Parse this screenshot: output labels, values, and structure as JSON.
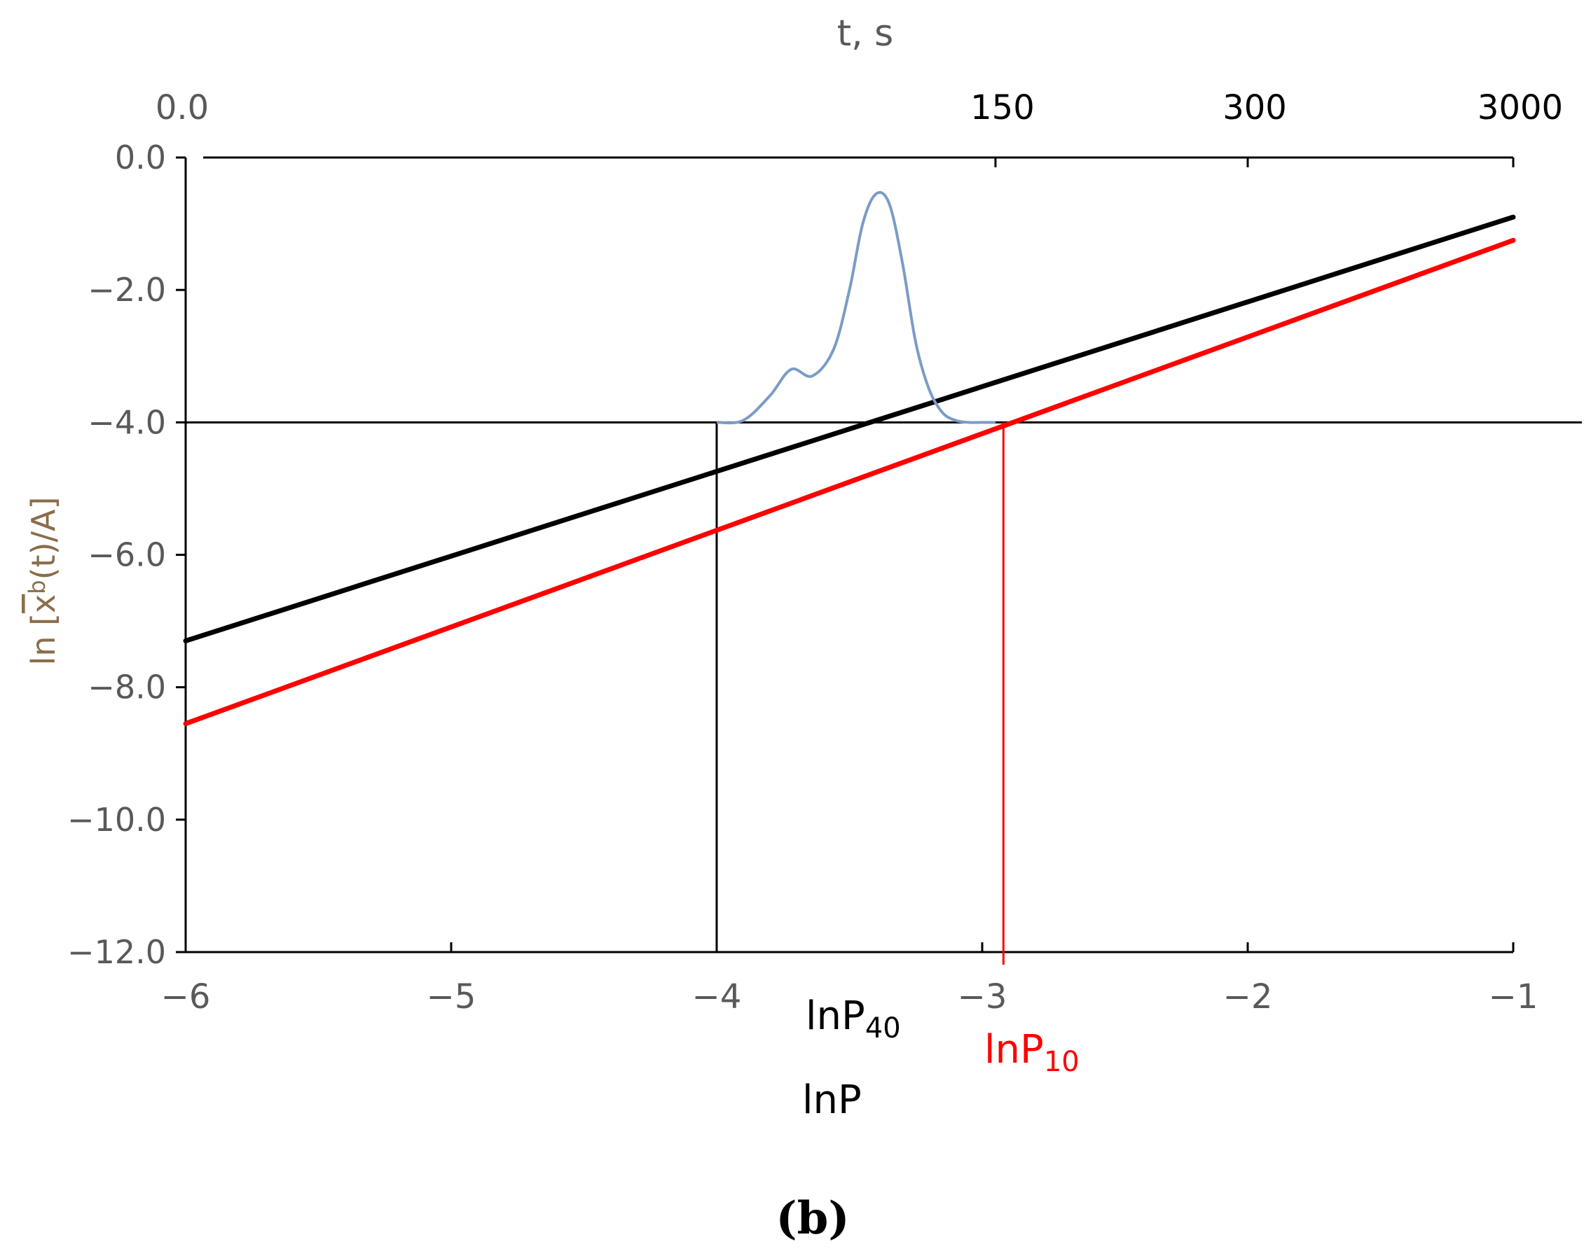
{
  "chart_data": {
    "type": "line",
    "panel_label": "(b)",
    "bottom_axis": {
      "label": "lnP",
      "xlim": [
        -6,
        -1
      ],
      "ticks": [
        -6,
        -5,
        -4,
        -3,
        -2,
        -1
      ],
      "tick_labels": [
        "−6",
        "−5",
        "−4",
        "−3",
        "−2",
        "−1"
      ]
    },
    "top_axis": {
      "label": "t, s",
      "tick_labels": [
        "0.0",
        "150",
        "300",
        "3000"
      ],
      "tick_positions_lnP": [
        -6,
        -2.95,
        -2.0,
        -1.0
      ]
    },
    "left_axis": {
      "label_parts": {
        "prefix": "ln [",
        "x": "x",
        "sup": "b",
        "suffix": "(t)/A]"
      },
      "ylim": [
        -12,
        0
      ],
      "ticks": [
        0,
        -2,
        -4,
        -6,
        -8,
        -10,
        -12
      ],
      "tick_labels": [
        "0.0",
        "−2.0",
        "−4.0",
        "−6.0",
        "−8.0",
        "−10.0",
        "−12.0"
      ]
    },
    "series": [
      {
        "key": "black_line",
        "color": "#000000",
        "x": [
          -6,
          -1
        ],
        "y": [
          -7.3,
          -0.9
        ]
      },
      {
        "key": "red_line",
        "color": "#ff0000",
        "x": [
          -6,
          -1
        ],
        "y": [
          -8.55,
          -1.25
        ]
      },
      {
        "key": "peak_curve",
        "color": "#7a9cc6",
        "x": [
          -4.0,
          -3.9,
          -3.8,
          -3.72,
          -3.64,
          -3.56,
          -3.5,
          -3.45,
          -3.4,
          -3.35,
          -3.3,
          -3.25,
          -3.2,
          -3.15,
          -3.1,
          -3.05,
          -3.0,
          -2.95
        ],
        "y": [
          -4.0,
          -3.97,
          -3.6,
          -3.2,
          -3.3,
          -2.9,
          -2.0,
          -1.0,
          -0.55,
          -0.7,
          -1.6,
          -2.8,
          -3.5,
          -3.85,
          -3.97,
          -4.0,
          -4.0,
          -4.0
        ]
      }
    ],
    "reference_lines": {
      "hline_y": -4.0,
      "lnP40": {
        "x": -4.0,
        "label_main": "lnP",
        "label_sub": "40",
        "color": "#000000"
      },
      "lnP10": {
        "x": -2.92,
        "label_main": "lnP",
        "label_sub": "10",
        "color": "#ff0000"
      }
    },
    "colors": {
      "axis": "#000000",
      "tick_label": "#595959",
      "top_label_dark": "#000000",
      "left_label": "#8a6d4a"
    },
    "grid": false,
    "legend": "none"
  }
}
